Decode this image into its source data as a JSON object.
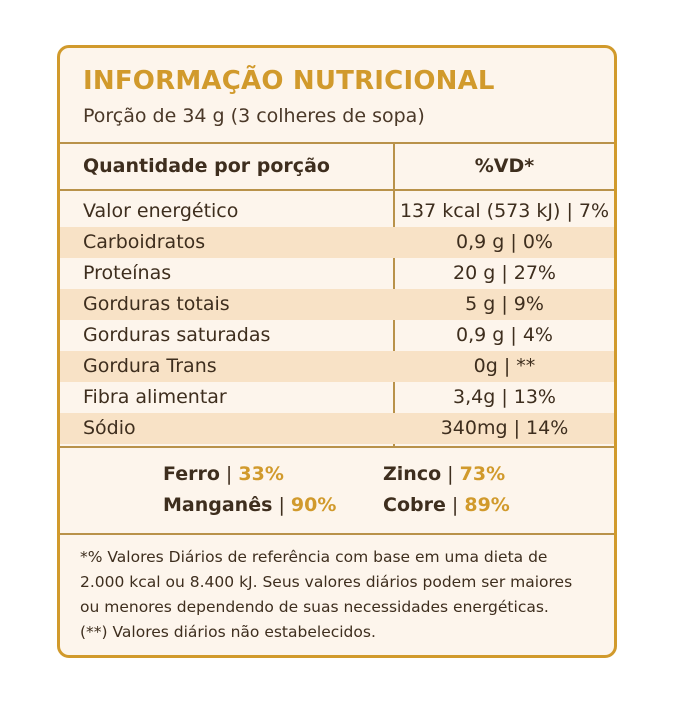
{
  "title": "INFORMAÇÃO NUTRICIONAL",
  "serving": "Porção de 34 g (3 colheres de sopa)",
  "table": {
    "headers": [
      "Quantidade por porção",
      "%VD*"
    ],
    "rows": [
      {
        "label": "Valor energético",
        "value": "137 kcal (573 kJ) | 7%"
      },
      {
        "label": "Carboidratos",
        "value": "0,9 g | 0%"
      },
      {
        "label": "Proteínas",
        "value": "20 g | 27%"
      },
      {
        "label": "Gorduras totais",
        "value": "5 g | 9%"
      },
      {
        "label": "Gorduras saturadas",
        "value": "0,9 g | 4%"
      },
      {
        "label": "Gordura Trans",
        "value": "0g | **"
      },
      {
        "label": "Fibra alimentar",
        "value": "3,4g | 13%"
      },
      {
        "label": "Sódio",
        "value": "340mg | 14%"
      }
    ]
  },
  "minerals": [
    {
      "name": "Ferro",
      "value": "33%"
    },
    {
      "name": "Zinco",
      "value": "73%"
    },
    {
      "name": "Manganês",
      "value": "90%"
    },
    {
      "name": "Cobre",
      "value": "89%"
    }
  ],
  "footnote": [
    "*% Valores Diários de referência com base em uma dieta de",
    "2.000 kcal ou 8.400 kJ. Seus valores diários podem ser maiores",
    "ou menores dependendo de suas necessidades energéticas.",
    "(**) Valores diários não estabelecidos."
  ],
  "colors": {
    "accent": "#d19a2c",
    "shade": "#f8e2c6",
    "background": "#fdf5ec",
    "text": "#3e2e1e"
  }
}
